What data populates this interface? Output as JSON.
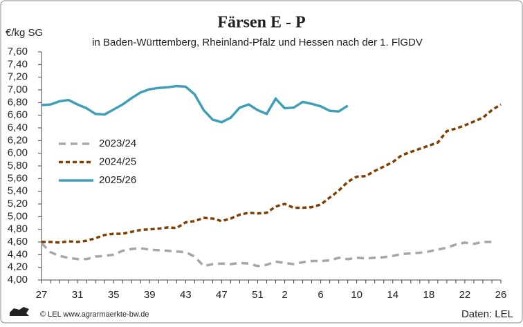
{
  "chart_data": {
    "type": "line",
    "title": "Färsen E - P",
    "subtitle": "in Baden-Württemberg, Rheinland-Pfalz und Hessen nach der 1. FlGDV",
    "y_label": "€/kg SG",
    "footer_left": "© LEL www.agrarmaerkte-bw.de",
    "footer_right": "Daten: LEL",
    "legend": "left",
    "grid": false,
    "categories": [
      27,
      null,
      null,
      null,
      31,
      null,
      null,
      null,
      35,
      null,
      null,
      null,
      39,
      null,
      null,
      null,
      43,
      null,
      null,
      null,
      47,
      null,
      null,
      null,
      51,
      null,
      null,
      2,
      null,
      null,
      null,
      6,
      null,
      null,
      null,
      10,
      null,
      null,
      null,
      14,
      null,
      null,
      null,
      18,
      null,
      null,
      null,
      22,
      null,
      null,
      null,
      26
    ],
    "ylim": [
      4.0,
      7.6
    ],
    "yticks": [
      {
        "value": 4.0,
        "label": "4,00"
      },
      {
        "value": 4.2,
        "label": "4,20"
      },
      {
        "value": 4.4,
        "label": "4,40"
      },
      {
        "value": 4.6,
        "label": "4,60"
      },
      {
        "value": 4.8,
        "label": "4,80"
      },
      {
        "value": 5.0,
        "label": "5,00"
      },
      {
        "value": 5.2,
        "label": "5,20"
      },
      {
        "value": 5.4,
        "label": "5,40"
      },
      {
        "value": 5.6,
        "label": "5,60"
      },
      {
        "value": 5.8,
        "label": "5,80"
      },
      {
        "value": 6.0,
        "label": "6,00"
      },
      {
        "value": 6.2,
        "label": "6,20"
      },
      {
        "value": 6.4,
        "label": "6,40"
      },
      {
        "value": 6.6,
        "label": "6,60"
      },
      {
        "value": 6.8,
        "label": "6,80"
      },
      {
        "value": 7.0,
        "label": "7,00"
      },
      {
        "value": 7.2,
        "label": "7,20"
      },
      {
        "value": 7.4,
        "label": "7,40"
      },
      {
        "value": 7.6,
        "label": "7,60"
      }
    ],
    "series": [
      {
        "name": "2023/24",
        "color": "#a6a6a6",
        "dash": "10 7",
        "values": [
          4.58,
          4.44,
          4.38,
          4.35,
          4.33,
          4.33,
          4.37,
          4.38,
          4.4,
          4.46,
          4.49,
          4.5,
          4.48,
          4.47,
          4.46,
          4.45,
          4.44,
          4.37,
          4.22,
          4.25,
          4.26,
          4.25,
          4.27,
          4.26,
          4.22,
          4.24,
          4.29,
          4.27,
          4.25,
          4.28,
          4.3,
          4.3,
          4.31,
          4.35,
          4.33,
          4.35,
          4.34,
          4.35,
          4.36,
          4.38,
          4.41,
          4.42,
          4.43,
          4.45,
          4.48,
          4.51,
          4.56,
          4.59,
          4.57,
          4.6,
          4.6,
          null
        ]
      },
      {
        "name": "2024/25",
        "color": "#7f3f00",
        "dash": "6 4",
        "values": [
          4.6,
          4.6,
          4.59,
          4.61,
          4.6,
          4.62,
          4.66,
          4.71,
          4.73,
          4.73,
          4.76,
          4.79,
          4.8,
          4.81,
          4.83,
          4.82,
          4.91,
          4.93,
          4.98,
          4.97,
          4.93,
          4.97,
          5.03,
          5.06,
          5.05,
          5.06,
          5.16,
          5.2,
          5.14,
          5.14,
          5.15,
          5.19,
          5.3,
          5.41,
          5.55,
          5.63,
          5.64,
          5.72,
          5.79,
          5.86,
          5.97,
          6.02,
          6.07,
          6.12,
          6.17,
          6.35,
          6.39,
          6.44,
          6.5,
          6.56,
          6.68,
          6.77
        ]
      },
      {
        "name": "2025/26",
        "color": "#3f9fb8",
        "dash": "",
        "values": [
          6.76,
          6.77,
          6.82,
          6.84,
          6.77,
          6.71,
          6.62,
          6.61,
          6.69,
          6.77,
          6.87,
          6.96,
          7.01,
          7.03,
          7.04,
          7.06,
          7.05,
          6.93,
          6.68,
          6.53,
          6.49,
          6.56,
          6.72,
          6.77,
          6.68,
          6.62,
          6.86,
          6.71,
          6.72,
          6.81,
          6.78,
          6.74,
          6.67,
          6.66,
          6.75,
          null,
          null,
          null,
          null,
          null,
          null,
          null,
          null,
          null,
          null,
          null,
          null,
          null,
          null,
          null,
          null,
          null
        ]
      }
    ]
  }
}
